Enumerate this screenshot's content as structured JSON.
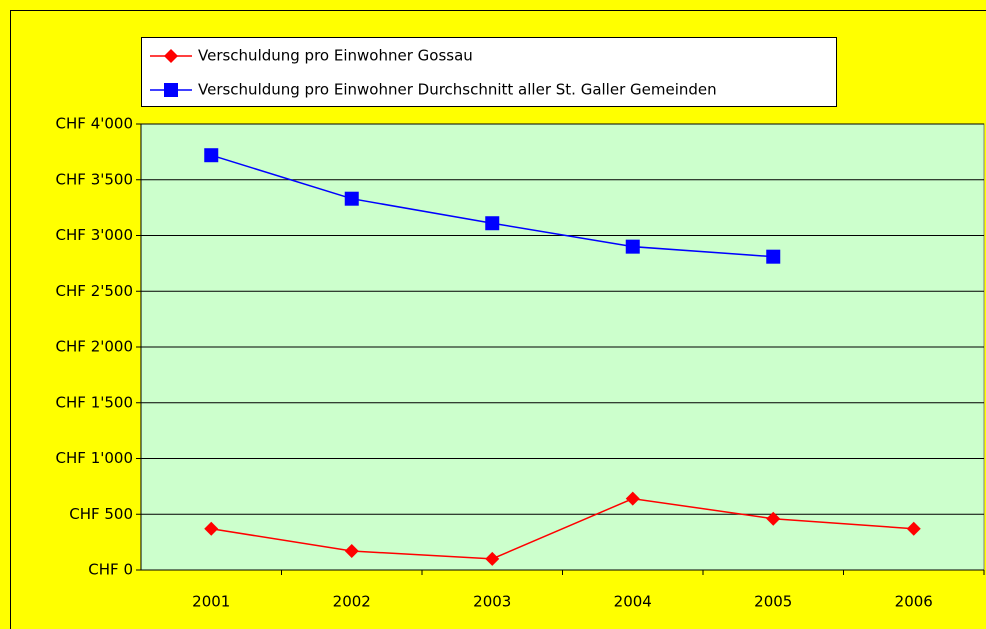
{
  "chart_data": {
    "type": "line",
    "categories": [
      "2001",
      "2002",
      "2003",
      "2004",
      "2005",
      "2006"
    ],
    "series": [
      {
        "name": "Verschuldung pro Einwohner Gossau",
        "color": "#ff0000",
        "marker": "diamond",
        "values": [
          370,
          170,
          100,
          640,
          460,
          370
        ]
      },
      {
        "name": "Verschuldung pro Einwohner Durchschnitt aller St. Galler Gemeinden",
        "color": "#0000ff",
        "marker": "square",
        "values": [
          3720,
          3330,
          3110,
          2900,
          2810,
          null
        ]
      }
    ],
    "ylim": [
      0,
      4000
    ],
    "yticks": [
      {
        "value": 0,
        "label": "CHF 0"
      },
      {
        "value": 500,
        "label": "CHF 500"
      },
      {
        "value": 1000,
        "label": "CHF 1'000"
      },
      {
        "value": 1500,
        "label": "CHF 1'500"
      },
      {
        "value": 2000,
        "label": "CHF 2'000"
      },
      {
        "value": 2500,
        "label": "CHF 2'500"
      },
      {
        "value": 3000,
        "label": "CHF 3'000"
      },
      {
        "value": 3500,
        "label": "CHF 3'500"
      },
      {
        "value": 4000,
        "label": "CHF 4'000"
      }
    ],
    "grid": true
  }
}
